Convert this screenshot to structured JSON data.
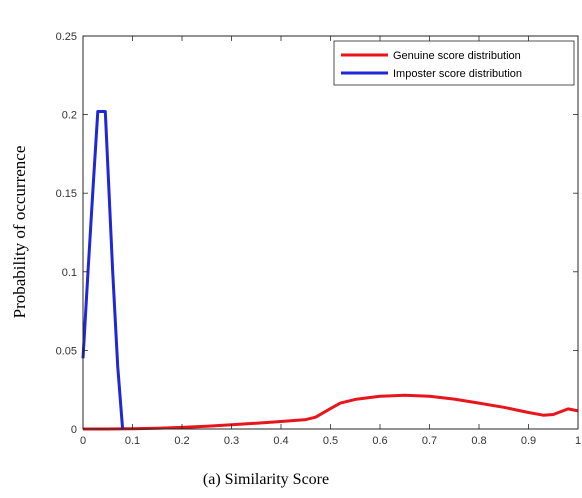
{
  "chart_data": {
    "type": "line",
    "title": "",
    "xlabel": "(a) Similarity Score",
    "ylabel": "Probability of occurrence",
    "xlim": [
      0,
      1
    ],
    "ylim": [
      0,
      0.25
    ],
    "xticks": [
      "0",
      "0.1",
      "0.2",
      "0.3",
      "0.4",
      "0.5",
      "0.6",
      "0.7",
      "0.8",
      "0.9",
      "1"
    ],
    "yticks": [
      "0",
      "0.05",
      "0.1",
      "0.15",
      "0.2",
      "0.25"
    ],
    "grid": false,
    "legend_position": "top-right",
    "series": [
      {
        "name": "Genuine score distribution",
        "color": "#e8151b",
        "x": [
          0,
          0.05,
          0.1,
          0.15,
          0.2,
          0.25,
          0.3,
          0.35,
          0.4,
          0.45,
          0.47,
          0.5,
          0.52,
          0.55,
          0.6,
          0.65,
          0.7,
          0.75,
          0.8,
          0.85,
          0.9,
          0.93,
          0.95,
          0.98,
          1
        ],
        "y": [
          0,
          0,
          0.0002,
          0.0005,
          0.001,
          0.0018,
          0.0027,
          0.0037,
          0.0048,
          0.006,
          0.0075,
          0.013,
          0.0165,
          0.0188,
          0.0208,
          0.0215,
          0.0208,
          0.019,
          0.0165,
          0.0138,
          0.0105,
          0.0088,
          0.0092,
          0.0128,
          0.0115
        ]
      },
      {
        "name": "Imposter score distribution",
        "color": "#1f27d6",
        "x": [
          0,
          0.01,
          0.02,
          0.03,
          0.045,
          0.06,
          0.07,
          0.08
        ],
        "y": [
          0.045,
          0.1,
          0.152,
          0.202,
          0.202,
          0.1,
          0.04,
          0
        ]
      }
    ]
  }
}
